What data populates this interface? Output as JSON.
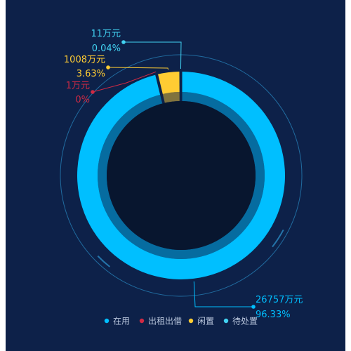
{
  "colors": {
    "background": "#0d2149",
    "inner_disc": "#08162f",
    "guide_ring": "#2a8bc4",
    "in_use": "#00bfff",
    "rented": "#d02a44",
    "idle": "#ffcc33",
    "pending": "#42d3f2"
  },
  "chart_data": {
    "type": "pie",
    "variant": "donut",
    "title": "",
    "legend_position": "bottom-right",
    "series": [
      {
        "name": "在用",
        "value": 26757,
        "value_label": "26757万元",
        "percent_label": "96.33%",
        "color": "#00bfff"
      },
      {
        "name": "出租出借",
        "value": 1,
        "value_label": "1万元",
        "percent_label": "0%",
        "color": "#d02a44"
      },
      {
        "name": "闲置",
        "value": 1008,
        "value_label": "1008万元",
        "percent_label": "3.63%",
        "color": "#ffcc33"
      },
      {
        "name": "待处置",
        "value": 11,
        "value_label": "11万元",
        "percent_label": "0.04%",
        "color": "#42d3f2"
      }
    ]
  }
}
